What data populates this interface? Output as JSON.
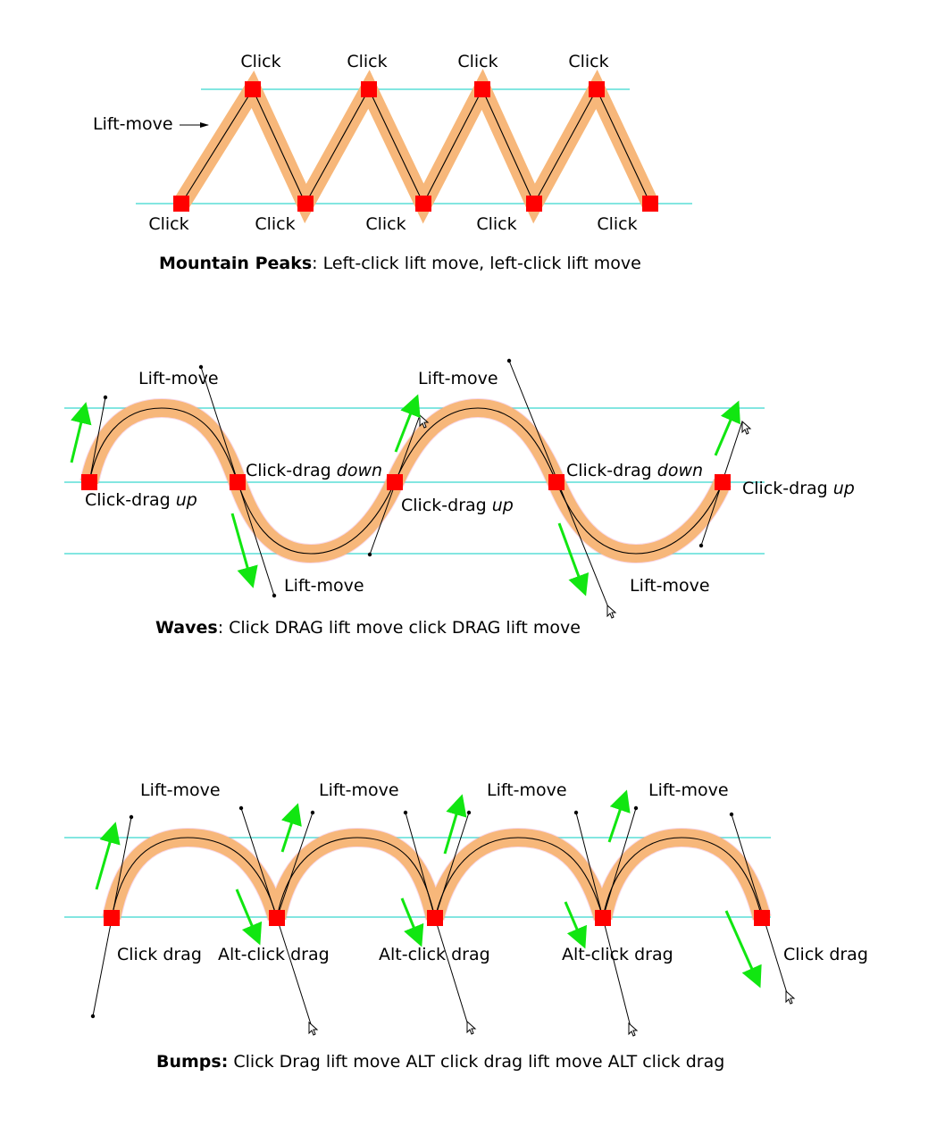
{
  "colors": {
    "guide": "#39d6cf",
    "band": "#f7b77a",
    "anchor": "#ff0000",
    "drag_arrow": "#11e611",
    "path": "#000000"
  },
  "mountain_peaks": {
    "click": "Click",
    "lift_move": "Lift-move",
    "caption_bold": "Mountain Peaks",
    "caption_rest": ": Left-click lift move, left-click lift move"
  },
  "waves": {
    "lift_move": "Lift-move",
    "click_drag": "Click-drag",
    "up": "up",
    "down": "down",
    "caption_bold": "Waves",
    "caption_rest": ": Click DRAG lift move click DRAG lift move"
  },
  "bumps": {
    "lift_move": "Lift-move",
    "click_drag": "Click drag",
    "alt_click_drag": "Alt-click drag",
    "caption_bold": "Bumps:",
    "caption_rest": " Click Drag lift move ALT click drag lift move ALT click drag"
  }
}
